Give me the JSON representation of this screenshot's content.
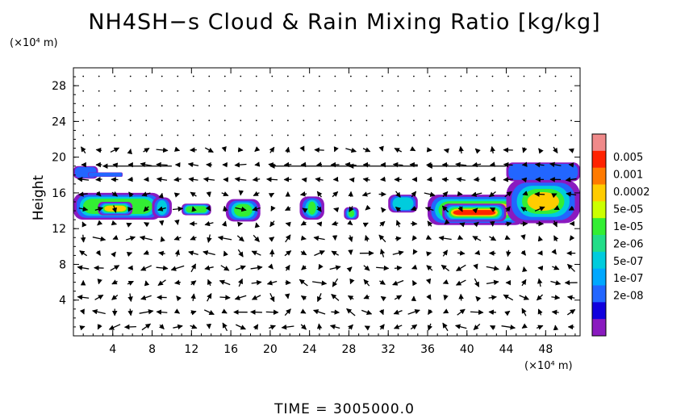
{
  "chart_data": {
    "type": "heatmap",
    "title": "NH4SH−s Cloud & Rain Mixing Ratio [kg/kg]",
    "ylabel": "Height",
    "yunit": "(×10⁴ m)",
    "xunit": "(×10⁴ m)",
    "time_label": "TIME  =  3005000.0",
    "x_ticks": [
      "4",
      "8",
      "12",
      "16",
      "20",
      "24",
      "28",
      "32",
      "36",
      "40",
      "44",
      "48"
    ],
    "y_ticks": [
      "4",
      "8",
      "12",
      "16",
      "20",
      "24",
      "28"
    ],
    "xlim": [
      0,
      51.5
    ],
    "ylim": [
      0,
      30
    ],
    "colorbar": {
      "labels": [
        "0.005",
        "0.001",
        "0.0002",
        "5e-05",
        "1e-05",
        "2e-06",
        "5e-07",
        "1e-07",
        "2e-08"
      ],
      "colors": [
        "#f08a8a",
        "#ff2200",
        "#ff7a00",
        "#ffcc00",
        "#ccff00",
        "#33ee33",
        "#22dd88",
        "#00ccdd",
        "#00a8ff",
        "#2266ff",
        "#1100dd",
        "#8a1abf"
      ]
    },
    "cloud_regions": [
      {
        "x": [
          0,
          2.5
        ],
        "y": [
          17.6,
          19.0
        ],
        "level": 1
      },
      {
        "x": [
          1.5,
          5
        ],
        "y": [
          17.8,
          18.3
        ],
        "level": 1
      },
      {
        "x": [
          0,
          9
        ],
        "y": [
          13.0,
          16.0
        ],
        "level": 3
      },
      {
        "x": [
          2.5,
          6
        ],
        "y": [
          13.5,
          15.0
        ],
        "level": 4
      },
      {
        "x": [
          8,
          10
        ],
        "y": [
          13.2,
          15.5
        ],
        "level": 2
      },
      {
        "x": [
          11,
          14
        ],
        "y": [
          13.5,
          14.8
        ],
        "level": 3
      },
      {
        "x": [
          15.5,
          19
        ],
        "y": [
          12.8,
          15.3
        ],
        "level": 3
      },
      {
        "x": [
          23,
          25.5
        ],
        "y": [
          13.0,
          15.6
        ],
        "level": 3
      },
      {
        "x": [
          27.5,
          29
        ],
        "y": [
          13.0,
          14.4
        ],
        "level": 3
      },
      {
        "x": [
          32,
          35
        ],
        "y": [
          13.8,
          15.8
        ],
        "level": 2
      },
      {
        "x": [
          36,
          46
        ],
        "y": [
          12.4,
          15.8
        ],
        "level": 4
      },
      {
        "x": [
          37.5,
          44
        ],
        "y": [
          12.8,
          14.8
        ],
        "level": 5
      },
      {
        "x": [
          44,
          51.5
        ],
        "y": [
          12.6,
          17.5
        ],
        "level": 4
      },
      {
        "x": [
          44,
          51.5
        ],
        "y": [
          17.3,
          19.4
        ],
        "level": 1
      }
    ]
  }
}
